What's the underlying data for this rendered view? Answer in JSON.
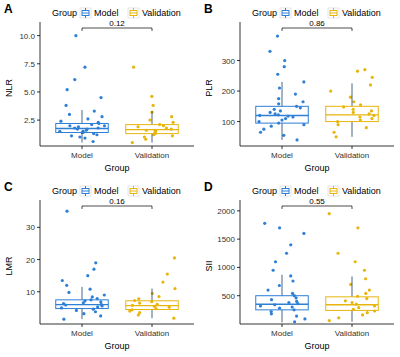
{
  "chart_data": [
    {
      "type": "box",
      "title": "A",
      "x_label": "Group",
      "y_label": "NLR",
      "legend_title": "Group",
      "legend": "top",
      "grid": false,
      "categories": [
        "Model",
        "Validation"
      ],
      "annotation": "0.12",
      "ylim": [
        0.2,
        10.5
      ],
      "yticks": [
        2.5,
        {
          "value": 5,
          "label": "5.0"
        },
        7.5,
        {
          "value": 10,
          "label": "10.0"
        }
      ],
      "series": [
        {
          "name": "Model",
          "color": "#2e7fd6",
          "box": {
            "whisker_low": 0.5,
            "q1": 1.4,
            "median": 1.75,
            "q3": 2.2,
            "whisker_high": 3.4
          },
          "points": [
            0.6,
            0.9,
            1.0,
            1.1,
            1.2,
            1.3,
            1.4,
            1.4,
            1.5,
            1.5,
            1.6,
            1.7,
            1.7,
            1.8,
            1.8,
            1.9,
            2.0,
            2.0,
            2.1,
            2.2,
            2.3,
            2.4,
            2.6,
            2.8,
            3.0,
            3.3,
            3.8,
            4.5,
            5.2,
            6.1,
            7.2,
            10.0
          ]
        },
        {
          "name": "Validation",
          "color": "#e8b50c",
          "box": {
            "whisker_low": 0.5,
            "q1": 1.3,
            "median": 1.65,
            "q3": 2.1,
            "whisker_high": 3.3
          },
          "points": [
            0.5,
            0.8,
            1.0,
            1.1,
            1.2,
            1.3,
            1.4,
            1.5,
            1.6,
            1.6,
            1.7,
            1.8,
            1.9,
            2.0,
            2.1,
            2.3,
            2.5,
            2.8,
            3.2,
            3.8,
            4.6,
            7.2
          ]
        }
      ]
    },
    {
      "type": "box",
      "title": "B",
      "x_label": "Group",
      "y_label": "PLR",
      "legend_title": "Group",
      "legend": "top",
      "grid": false,
      "categories": [
        "Model",
        "Validation"
      ],
      "annotation": "0.86",
      "ylim": [
        20,
        400
      ],
      "yticks": [
        100,
        200,
        300
      ],
      "series": [
        {
          "name": "Model",
          "color": "#2e7fd6",
          "box": {
            "whisker_low": 40,
            "q1": 95,
            "median": 120,
            "q3": 150,
            "whisker_high": 230
          },
          "points": [
            40,
            55,
            65,
            75,
            85,
            90,
            95,
            100,
            105,
            110,
            115,
            118,
            120,
            122,
            125,
            130,
            135,
            140,
            145,
            150,
            158,
            165,
            175,
            190,
            210,
            230,
            255,
            280,
            300,
            330,
            380
          ]
        },
        {
          "name": "Validation",
          "color": "#e8b50c",
          "box": {
            "whisker_low": 50,
            "q1": 100,
            "median": 122,
            "q3": 150,
            "whisker_high": 225
          },
          "points": [
            50,
            65,
            80,
            90,
            100,
            105,
            110,
            115,
            120,
            125,
            130,
            135,
            140,
            148,
            155,
            165,
            180,
            200,
            220,
            245,
            265,
            270
          ]
        }
      ]
    },
    {
      "type": "box",
      "title": "C",
      "x_label": "Group",
      "y_label": "LMR",
      "legend_title": "Group",
      "legend": "top",
      "grid": false,
      "categories": [
        "Model",
        "Validation"
      ],
      "annotation": "0.16",
      "ylim": [
        0,
        36
      ],
      "yticks": [
        10,
        20,
        30
      ],
      "series": [
        {
          "name": "Model",
          "color": "#2e7fd6",
          "box": {
            "whisker_low": 1.5,
            "q1": 4.8,
            "median": 6.0,
            "q3": 7.5,
            "whisker_high": 11.5
          },
          "points": [
            1.5,
            2.5,
            3.2,
            3.8,
            4.2,
            4.6,
            5.0,
            5.3,
            5.6,
            5.9,
            6.1,
            6.3,
            6.6,
            6.9,
            7.2,
            7.5,
            7.9,
            8.4,
            9.0,
            9.8,
            10.8,
            12.0,
            13.5,
            15.0,
            17.0,
            19.0,
            35.0
          ]
        },
        {
          "name": "Validation",
          "color": "#e8b50c",
          "box": {
            "whisker_low": 1.8,
            "q1": 4.5,
            "median": 5.7,
            "q3": 7.2,
            "whisker_high": 11.0
          },
          "points": [
            1.8,
            2.8,
            3.5,
            4.0,
            4.4,
            4.8,
            5.2,
            5.5,
            5.8,
            6.1,
            6.5,
            6.9,
            7.3,
            7.8,
            8.5,
            9.5,
            11.0,
            13.0,
            15.5,
            20.5
          ]
        }
      ]
    },
    {
      "type": "box",
      "title": "D",
      "x_label": "Group",
      "y_label": "SII",
      "legend_title": "Group",
      "legend": "top",
      "grid": false,
      "categories": [
        "Model",
        "Validation"
      ],
      "annotation": "0.55",
      "ylim": [
        0,
        2050
      ],
      "yticks": [
        500,
        1000,
        1500,
        2000
      ],
      "series": [
        {
          "name": "Model",
          "color": "#2e7fd6",
          "box": {
            "whisker_low": 30,
            "q1": 250,
            "median": 350,
            "q3": 500,
            "whisker_high": 870
          },
          "points": [
            40,
            90,
            140,
            180,
            220,
            250,
            280,
            300,
            320,
            340,
            360,
            380,
            400,
            430,
            460,
            500,
            540,
            600,
            680,
            760,
            850,
            950,
            1100,
            1250,
            1400,
            1600,
            1700,
            1780
          ]
        },
        {
          "name": "Validation",
          "color": "#e8b50c",
          "box": {
            "whisker_low": 40,
            "q1": 240,
            "median": 340,
            "q3": 480,
            "whisker_high": 840
          },
          "points": [
            60,
            110,
            160,
            200,
            230,
            260,
            290,
            320,
            350,
            380,
            410,
            450,
            490,
            540,
            600,
            700,
            800,
            950,
            1100,
            1250,
            1700,
            1950
          ]
        }
      ]
    }
  ]
}
